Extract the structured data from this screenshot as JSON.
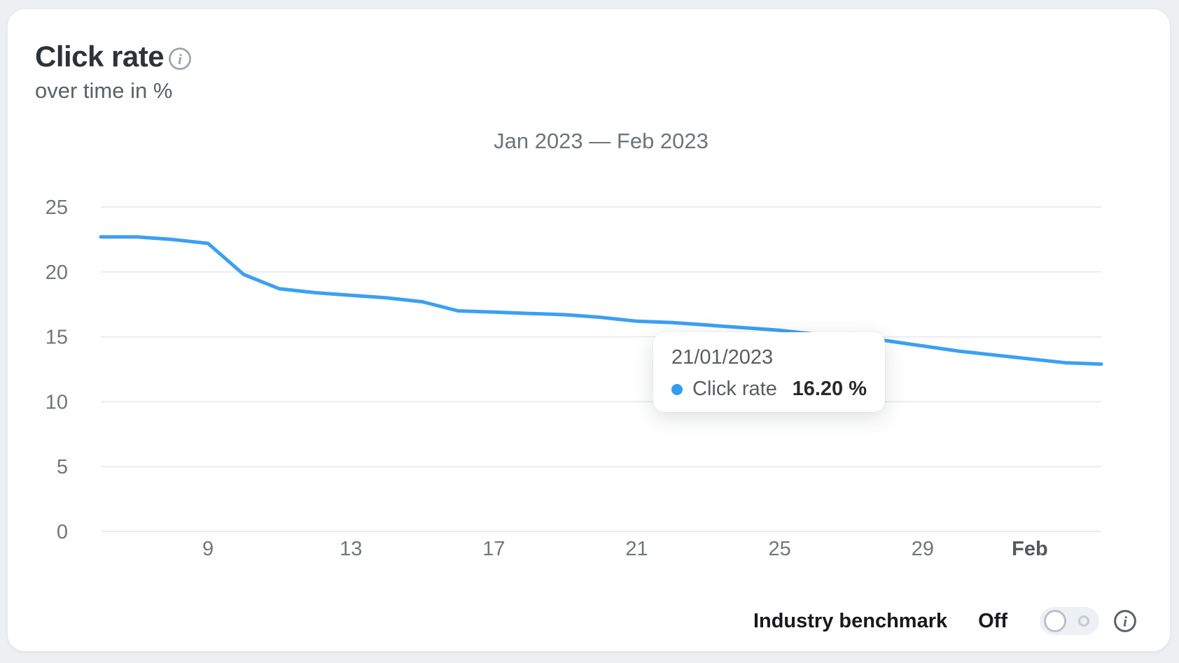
{
  "card": {
    "title": "Click rate",
    "subtitle": "over time in %"
  },
  "icons": {
    "info_glyph": "i"
  },
  "chart_data": {
    "type": "line",
    "title": "Jan 2023 — Feb 2023",
    "ylabel": "%",
    "ylim": [
      0,
      25
    ],
    "y_ticks": [
      0,
      5,
      10,
      15,
      20,
      25
    ],
    "grid": true,
    "x_dates": [
      "06/01/2023",
      "07/01/2023",
      "08/01/2023",
      "09/01/2023",
      "10/01/2023",
      "11/01/2023",
      "12/01/2023",
      "13/01/2023",
      "14/01/2023",
      "15/01/2023",
      "16/01/2023",
      "17/01/2023",
      "18/01/2023",
      "19/01/2023",
      "20/01/2023",
      "21/01/2023",
      "22/01/2023",
      "23/01/2023",
      "24/01/2023",
      "25/01/2023",
      "26/01/2023",
      "27/01/2023",
      "28/01/2023",
      "29/01/2023",
      "30/01/2023",
      "31/01/2023",
      "01/02/2023",
      "02/02/2023",
      "03/02/2023"
    ],
    "x_ticks": [
      {
        "label": "9",
        "index": 3,
        "bold": false
      },
      {
        "label": "13",
        "index": 7,
        "bold": false
      },
      {
        "label": "17",
        "index": 11,
        "bold": false
      },
      {
        "label": "21",
        "index": 15,
        "bold": false
      },
      {
        "label": "25",
        "index": 19,
        "bold": false
      },
      {
        "label": "29",
        "index": 23,
        "bold": false
      },
      {
        "label": "Feb",
        "index": 26,
        "bold": true
      }
    ],
    "series": [
      {
        "name": "Click rate",
        "color": "#3ba0f2",
        "values": [
          22.7,
          22.7,
          22.5,
          22.2,
          19.8,
          18.7,
          18.4,
          18.2,
          18.0,
          17.7,
          17.0,
          16.9,
          16.8,
          16.7,
          16.5,
          16.2,
          16.1,
          15.9,
          15.7,
          15.5,
          15.2,
          14.9,
          14.7,
          14.3,
          13.9,
          13.6,
          13.3,
          13.0,
          12.9
        ]
      }
    ]
  },
  "tooltip": {
    "date": "21/01/2023",
    "series_label": "Click rate",
    "value": "16.20 %",
    "point_index": 15,
    "dot_color": "#2f9df3"
  },
  "footer": {
    "benchmark_label": "Industry benchmark",
    "state_label": "Off",
    "toggle_on": false
  },
  "colors": {
    "line": "#3ba0f2",
    "gridline": "#eaecee",
    "axis_text": "#71767c",
    "page_bg": "#edeff2"
  }
}
